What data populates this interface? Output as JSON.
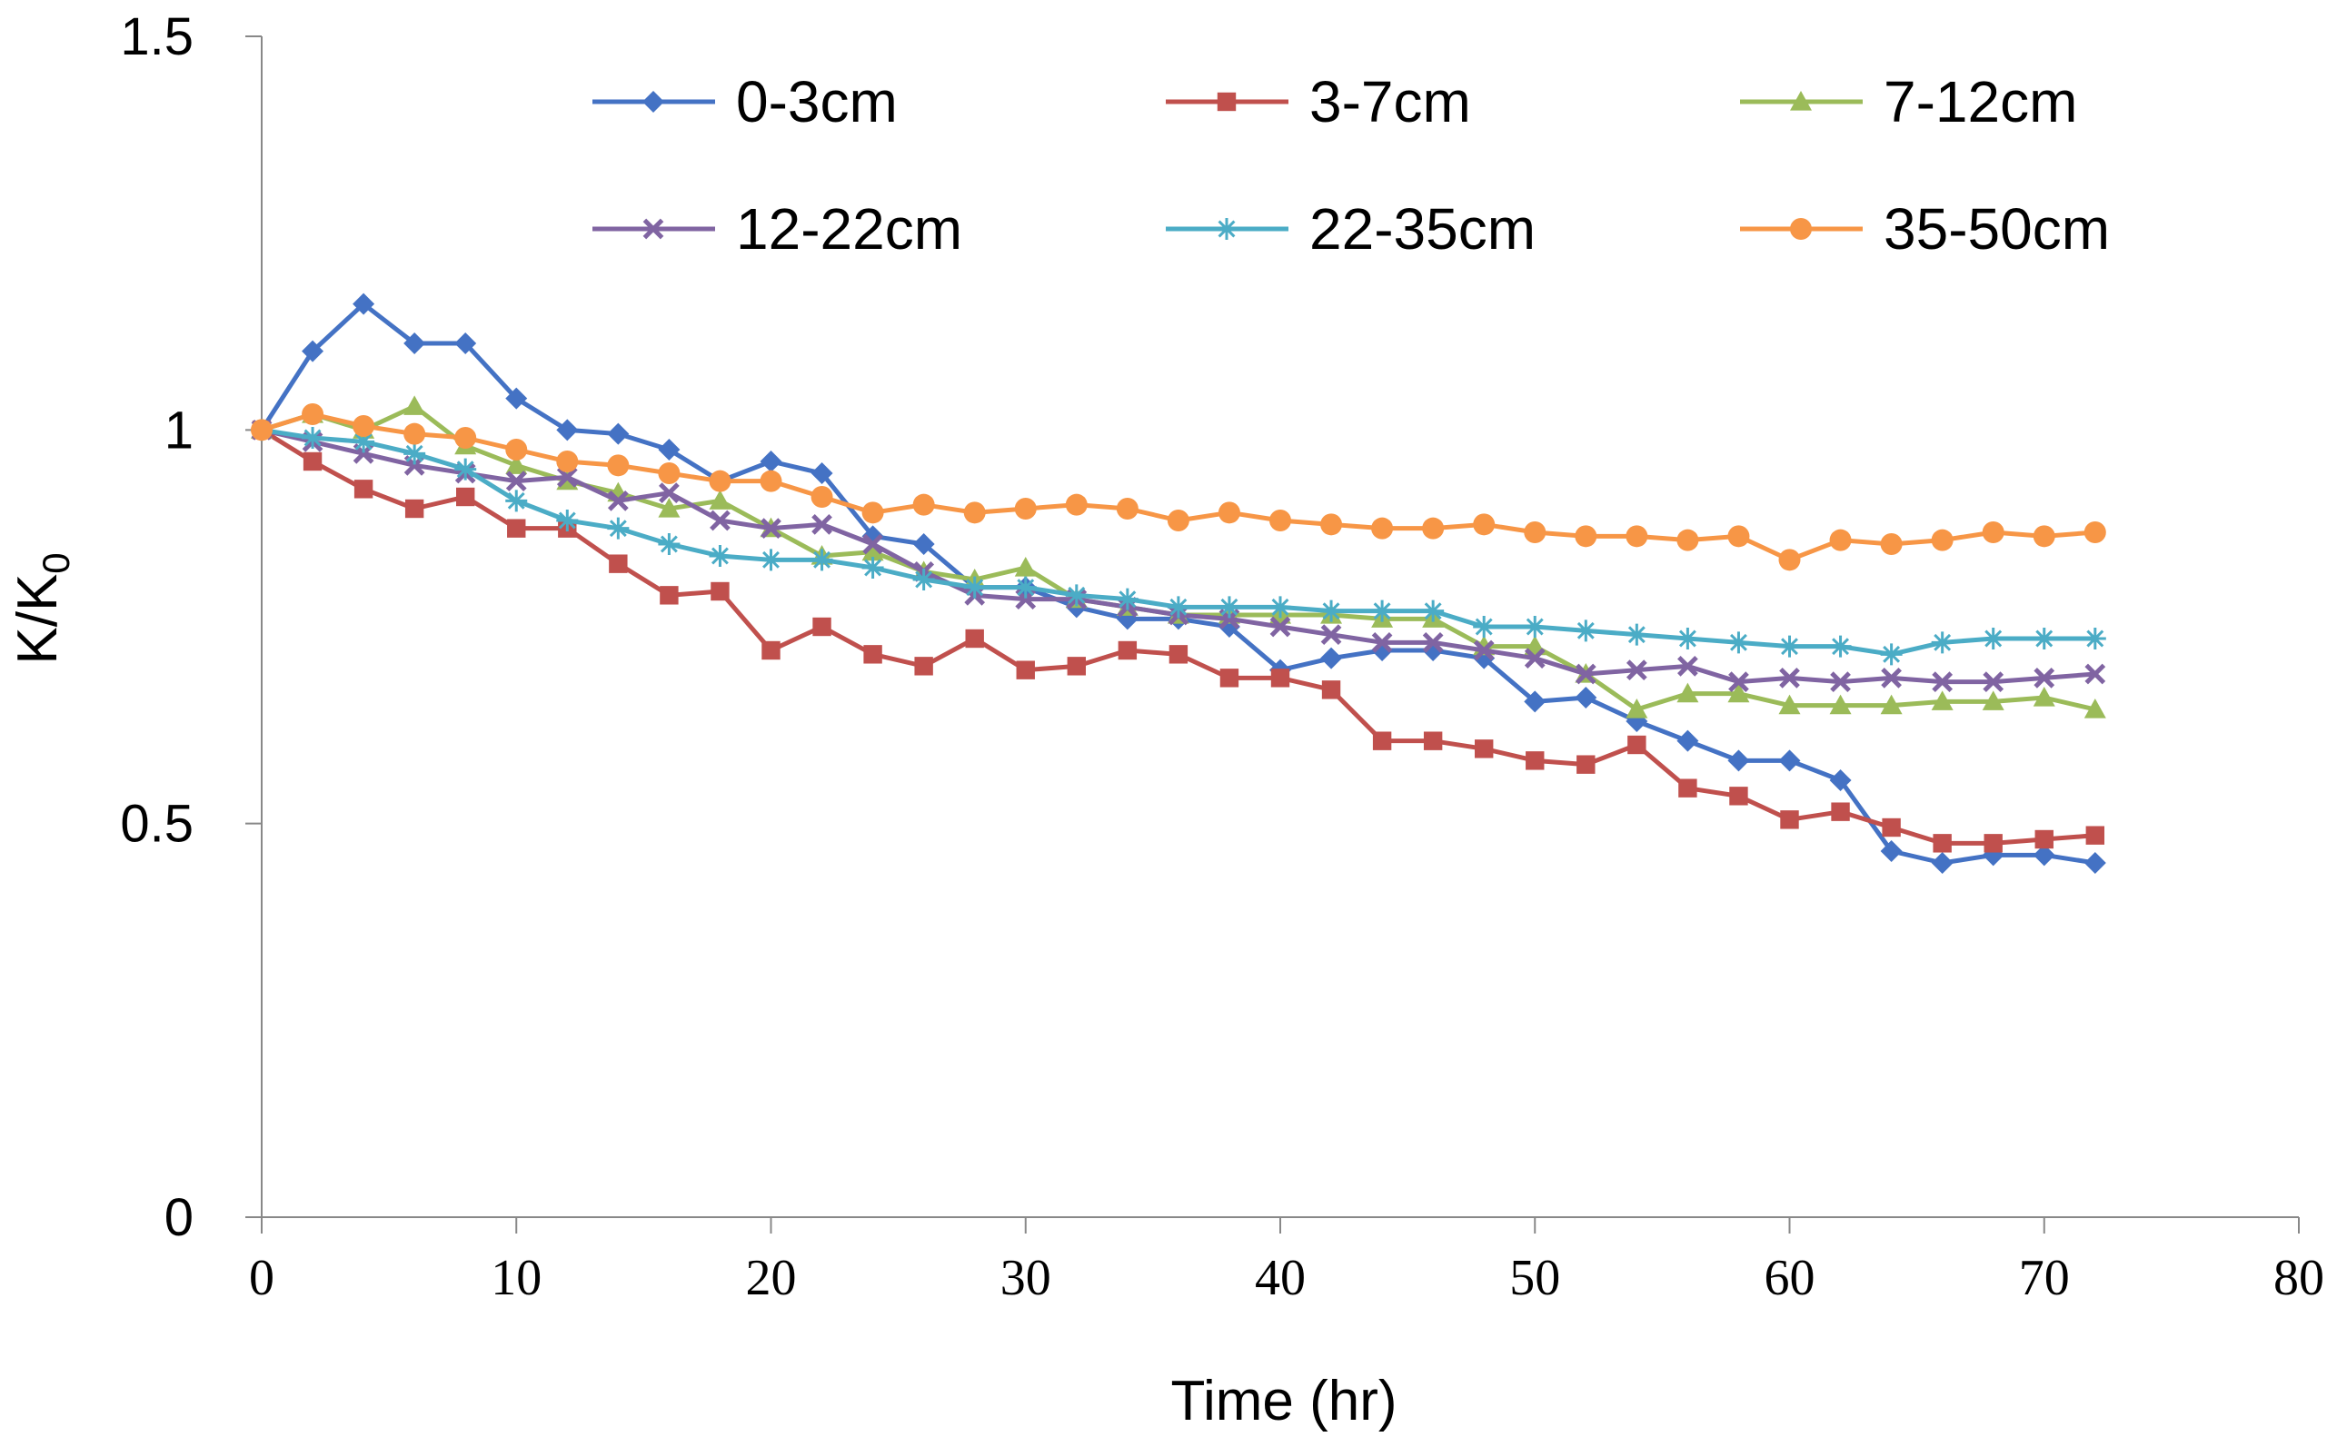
{
  "chart_data": {
    "type": "line",
    "title": "",
    "xlabel": "Time (hr)",
    "ylabel": "K/K",
    "ylabel_subscript": "0",
    "xlim": [
      0,
      80
    ],
    "ylim": [
      0,
      1.5
    ],
    "xticks": [
      0,
      10,
      20,
      30,
      40,
      50,
      60,
      70,
      80
    ],
    "xtick_labels": [
      "0",
      "10",
      "20",
      "30",
      "40",
      "50",
      "60",
      "70",
      "80"
    ],
    "yticks": [
      0,
      0.5,
      1,
      1.5
    ],
    "ytick_labels": [
      "0",
      "0.5",
      "1",
      "1.5"
    ],
    "grid": false,
    "legend_position": "top",
    "x": [
      0,
      2,
      4,
      6,
      8,
      10,
      12,
      14,
      16,
      18,
      20,
      22,
      24,
      26,
      28,
      30,
      32,
      34,
      36,
      38,
      40,
      42,
      44,
      46,
      48,
      50,
      52,
      54,
      56,
      58,
      60,
      62,
      64,
      66,
      68,
      70,
      72
    ],
    "series": [
      {
        "name": "0-3cm",
        "color": "#4472C4",
        "marker": "diamond",
        "values": [
          1.0,
          1.1,
          1.16,
          1.11,
          1.11,
          1.04,
          1.0,
          0.995,
          0.975,
          0.935,
          0.96,
          0.945,
          0.865,
          0.855,
          0.8,
          0.8,
          0.775,
          0.76,
          0.76,
          0.75,
          0.695,
          0.71,
          0.72,
          0.72,
          0.71,
          0.655,
          0.66,
          0.63,
          0.605,
          0.58,
          0.58,
          0.555,
          0.465,
          0.45,
          0.46,
          0.46,
          0.45
        ]
      },
      {
        "name": "3-7cm",
        "color": "#C0504D",
        "marker": "square",
        "values": [
          1.0,
          0.96,
          0.925,
          0.9,
          0.915,
          0.875,
          0.875,
          0.83,
          0.79,
          0.795,
          0.72,
          0.75,
          0.715,
          0.7,
          0.735,
          0.695,
          0.7,
          0.72,
          0.715,
          0.685,
          0.685,
          0.67,
          0.605,
          0.605,
          0.595,
          0.58,
          0.575,
          0.6,
          0.545,
          0.535,
          0.505,
          0.515,
          0.495,
          0.475,
          0.475,
          0.48,
          0.485
        ]
      },
      {
        "name": "7-12cm",
        "color": "#9BBB59",
        "marker": "triangle",
        "values": [
          1.0,
          1.02,
          1.0,
          1.03,
          0.98,
          0.955,
          0.935,
          0.92,
          0.9,
          0.91,
          0.875,
          0.84,
          0.845,
          0.82,
          0.81,
          0.825,
          0.785,
          0.775,
          0.765,
          0.765,
          0.765,
          0.765,
          0.76,
          0.76,
          0.725,
          0.725,
          0.69,
          0.645,
          0.665,
          0.665,
          0.65,
          0.65,
          0.65,
          0.655,
          0.655,
          0.66,
          0.645
        ]
      },
      {
        "name": "12-22cm",
        "color": "#8064A2",
        "marker": "x",
        "values": [
          1.0,
          0.985,
          0.97,
          0.955,
          0.945,
          0.935,
          0.94,
          0.91,
          0.92,
          0.885,
          0.875,
          0.88,
          0.855,
          0.82,
          0.79,
          0.785,
          0.785,
          0.775,
          0.765,
          0.76,
          0.75,
          0.74,
          0.73,
          0.73,
          0.72,
          0.71,
          0.69,
          0.695,
          0.7,
          0.68,
          0.685,
          0.68,
          0.685,
          0.68,
          0.68,
          0.685,
          0.69
        ]
      },
      {
        "name": "22-35cm",
        "color": "#4BACC6",
        "marker": "star",
        "values": [
          1.0,
          0.99,
          0.985,
          0.97,
          0.95,
          0.91,
          0.885,
          0.875,
          0.855,
          0.84,
          0.835,
          0.835,
          0.825,
          0.81,
          0.8,
          0.8,
          0.79,
          0.785,
          0.775,
          0.775,
          0.775,
          0.77,
          0.77,
          0.77,
          0.75,
          0.75,
          0.745,
          0.74,
          0.735,
          0.73,
          0.725,
          0.725,
          0.715,
          0.73,
          0.735,
          0.735,
          0.735
        ]
      },
      {
        "name": "35-50cm",
        "color": "#F79646",
        "marker": "circle",
        "values": [
          1.0,
          1.02,
          1.005,
          0.995,
          0.99,
          0.975,
          0.96,
          0.955,
          0.945,
          0.935,
          0.935,
          0.915,
          0.895,
          0.905,
          0.895,
          0.9,
          0.905,
          0.9,
          0.885,
          0.895,
          0.885,
          0.88,
          0.875,
          0.875,
          0.88,
          0.87,
          0.865,
          0.865,
          0.86,
          0.865,
          0.835,
          0.86,
          0.855,
          0.86,
          0.87,
          0.865,
          0.87
        ]
      }
    ]
  }
}
